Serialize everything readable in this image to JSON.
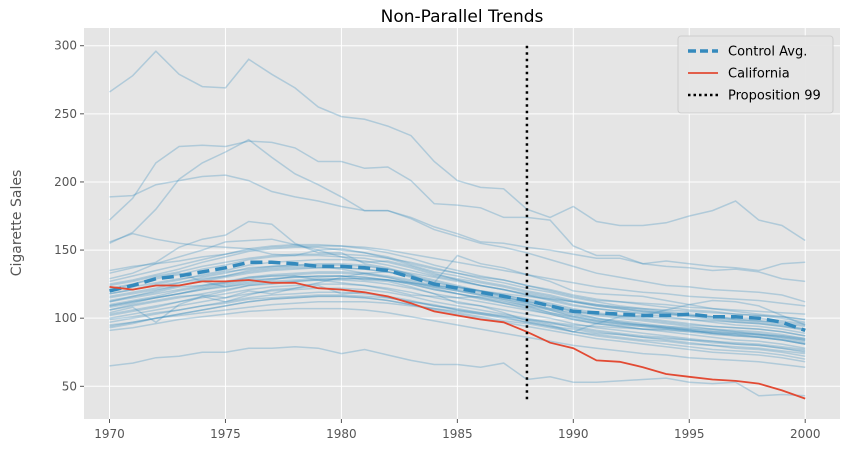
{
  "chart_data": {
    "type": "line",
    "title": "Non-Parallel Trends",
    "xlabel": "",
    "ylabel": "Cigarette Sales",
    "xlim": [
      1968.9,
      2001.5
    ],
    "ylim": [
      26,
      313
    ],
    "x_ticks": [
      1970,
      1975,
      1980,
      1985,
      1990,
      1995,
      2000
    ],
    "y_ticks": [
      50,
      100,
      150,
      200,
      250,
      300
    ],
    "grid": true,
    "legend_position": "top-right",
    "x": [
      1970,
      1971,
      1972,
      1973,
      1974,
      1975,
      1976,
      1977,
      1978,
      1979,
      1980,
      1981,
      1982,
      1983,
      1984,
      1985,
      1986,
      1987,
      1988,
      1989,
      1990,
      1991,
      1992,
      1993,
      1994,
      1995,
      1996,
      1997,
      1998,
      1999,
      2000
    ],
    "series": [
      {
        "name": "Control Avg.",
        "style": "dashed",
        "color": "#348ABD",
        "values": [
          120,
          124,
          129,
          131,
          134,
          137,
          141,
          141,
          140,
          138,
          138,
          137,
          135,
          130,
          125,
          122,
          119,
          116,
          113,
          109,
          105,
          104,
          103,
          102,
          102,
          103,
          101,
          101,
          100,
          97,
          91
        ]
      },
      {
        "name": "California",
        "style": "solid",
        "color": "#E24A33",
        "values": [
          123,
          121,
          124,
          124,
          127,
          127,
          128,
          126,
          126,
          122,
          121,
          119,
          116,
          111,
          105,
          102,
          99,
          97,
          90,
          82,
          78,
          69,
          68,
          64,
          59,
          57,
          55,
          54,
          52,
          47,
          41
        ]
      }
    ],
    "vline": {
      "name": "Proposition 99",
      "x": 1988,
      "y_range": [
        40,
        300
      ],
      "style": "dotted",
      "color": "#000000"
    },
    "control_states_color": "#348ABD",
    "control_states": [
      [
        266,
        278,
        296,
        279,
        270,
        269,
        290,
        279,
        269,
        255,
        248,
        246,
        241,
        234,
        215,
        201,
        196,
        195,
        180,
        174,
        182,
        171,
        168,
        168,
        170,
        175,
        179,
        186,
        172,
        168,
        157
      ],
      [
        189,
        190,
        198,
        201,
        204,
        205,
        201,
        193,
        189,
        186,
        182,
        179,
        179,
        174,
        167,
        162,
        156,
        155,
        152,
        150,
        147,
        144,
        144,
        140,
        138,
        137,
        135,
        136,
        134,
        129,
        127
      ],
      [
        172,
        188,
        214,
        226,
        227,
        226,
        230,
        229,
        225,
        215,
        215,
        210,
        211,
        201,
        184,
        183,
        181,
        174,
        174,
        172,
        153,
        146,
        146,
        140,
        142,
        140,
        138,
        137,
        135,
        140,
        141
      ],
      [
        155,
        163,
        180,
        202,
        214,
        222,
        231,
        218,
        206,
        198,
        189,
        179,
        179,
        173,
        165,
        160,
        155,
        152,
        148,
        143,
        138,
        133,
        130,
        127,
        124,
        123,
        121,
        120,
        119,
        117,
        112
      ],
      [
        156,
        162,
        158,
        155,
        153,
        152,
        151,
        147,
        146,
        150,
        145,
        141,
        142,
        138,
        133,
        128,
        124,
        121,
        117,
        113,
        109,
        107,
        105,
        104,
        103,
        102,
        101,
        100,
        100,
        98,
        96
      ],
      [
        133,
        137,
        141,
        152,
        158,
        161,
        171,
        169,
        155,
        148,
        148,
        140,
        137,
        132,
        124,
        123,
        120,
        116,
        111,
        106,
        101,
        98,
        96,
        95,
        94,
        92,
        90,
        89,
        88,
        86,
        83
      ],
      [
        129,
        133,
        140,
        145,
        150,
        156,
        157,
        158,
        154,
        150,
        151,
        148,
        145,
        140,
        136,
        133,
        130,
        128,
        124,
        120,
        116,
        113,
        112,
        111,
        110,
        108,
        107,
        106,
        105,
        104,
        103
      ],
      [
        125,
        128,
        132,
        136,
        141,
        145,
        149,
        151,
        152,
        152,
        150,
        148,
        144,
        139,
        134,
        131,
        127,
        124,
        120,
        117,
        113,
        110,
        108,
        106,
        104,
        102,
        100,
        98,
        97,
        95,
        92
      ],
      [
        122,
        125,
        129,
        132,
        136,
        139,
        143,
        145,
        146,
        146,
        145,
        144,
        141,
        137,
        132,
        129,
        126,
        123,
        119,
        116,
        112,
        109,
        107,
        105,
        103,
        101,
        99,
        97,
        96,
        94,
        91
      ],
      [
        118,
        121,
        125,
        128,
        132,
        135,
        139,
        141,
        142,
        143,
        143,
        142,
        139,
        135,
        131,
        128,
        124,
        121,
        117,
        114,
        110,
        107,
        105,
        103,
        101,
        99,
        97,
        95,
        94,
        92,
        89
      ],
      [
        115,
        118,
        121,
        124,
        127,
        130,
        133,
        135,
        136,
        137,
        137,
        136,
        134,
        130,
        126,
        123,
        120,
        117,
        114,
        111,
        107,
        104,
        102,
        100,
        98,
        96,
        94,
        93,
        92,
        90,
        87
      ],
      [
        112,
        115,
        118,
        121,
        124,
        127,
        130,
        132,
        133,
        134,
        134,
        133,
        131,
        128,
        124,
        121,
        118,
        115,
        112,
        109,
        105,
        102,
        100,
        98,
        96,
        94,
        92,
        90,
        89,
        87,
        84
      ],
      [
        109,
        112,
        115,
        118,
        121,
        124,
        127,
        129,
        130,
        131,
        131,
        130,
        128,
        125,
        121,
        118,
        115,
        112,
        109,
        106,
        102,
        99,
        97,
        95,
        93,
        91,
        89,
        87,
        86,
        84,
        81
      ],
      [
        106,
        109,
        112,
        115,
        118,
        121,
        124,
        126,
        127,
        128,
        128,
        127,
        125,
        122,
        118,
        115,
        112,
        109,
        106,
        103,
        99,
        96,
        94,
        92,
        90,
        88,
        86,
        84,
        83,
        81,
        78
      ],
      [
        103,
        106,
        109,
        112,
        115,
        118,
        121,
        123,
        124,
        125,
        125,
        124,
        122,
        119,
        115,
        112,
        109,
        106,
        103,
        100,
        96,
        93,
        91,
        89,
        87,
        85,
        83,
        81,
        80,
        78,
        75
      ],
      [
        100,
        103,
        106,
        109,
        112,
        115,
        118,
        120,
        121,
        122,
        122,
        121,
        119,
        116,
        112,
        109,
        106,
        103,
        100,
        97,
        93,
        90,
        88,
        86,
        84,
        82,
        80,
        78,
        77,
        75,
        72
      ],
      [
        97,
        100,
        103,
        106,
        109,
        112,
        115,
        117,
        118,
        119,
        119,
        118,
        116,
        113,
        109,
        106,
        103,
        100,
        97,
        94,
        90,
        87,
        85,
        83,
        81,
        79,
        77,
        76,
        75,
        73,
        70
      ],
      [
        94,
        97,
        100,
        103,
        106,
        109,
        112,
        114,
        115,
        116,
        116,
        115,
        113,
        110,
        106,
        103,
        100,
        97,
        94,
        91,
        88,
        85,
        83,
        81,
        79,
        77,
        75,
        74,
        73,
        71,
        68
      ],
      [
        91,
        93,
        96,
        99,
        101,
        103,
        105,
        106,
        107,
        107,
        107,
        106,
        104,
        101,
        98,
        95,
        92,
        89,
        86,
        83,
        80,
        78,
        76,
        74,
        73,
        71,
        70,
        69,
        68,
        66,
        64
      ],
      [
        65,
        67,
        71,
        72,
        75,
        75,
        78,
        78,
        79,
        78,
        74,
        77,
        73,
        69,
        66,
        66,
        64,
        67,
        55,
        57,
        53,
        53,
        54,
        55,
        56,
        53,
        52,
        53,
        43,
        44,
        43
      ],
      [
        120,
        125,
        130,
        133,
        127,
        123,
        126,
        128,
        131,
        130,
        131,
        128,
        127,
        123,
        118,
        111,
        109,
        104,
        98,
        95,
        90,
        96,
        101,
        102,
        106,
        110,
        113,
        112,
        109,
        102,
        95
      ],
      [
        106,
        110,
        113,
        116,
        117,
        115,
        120,
        118,
        122,
        126,
        130,
        133,
        134,
        131,
        126,
        146,
        140,
        137,
        132,
        127,
        120,
        118,
        117,
        116,
        113,
        110,
        107,
        105,
        103,
        101,
        99
      ],
      [
        113,
        116,
        119,
        123,
        124,
        126,
        130,
        131,
        131,
        128,
        126,
        124,
        121,
        117,
        116,
        115,
        116,
        113,
        109,
        104,
        100,
        97,
        95,
        94,
        93,
        92,
        91,
        90,
        88,
        86,
        84
      ],
      [
        118,
        121,
        124,
        126,
        129,
        131,
        135,
        137,
        138,
        138,
        136,
        133,
        130,
        126,
        122,
        118,
        115,
        111,
        107,
        103,
        99,
        96,
        94,
        92,
        92,
        91,
        89,
        88,
        87,
        85,
        82
      ],
      [
        102,
        105,
        108,
        112,
        116,
        120,
        124,
        125,
        127,
        128,
        129,
        129,
        128,
        126,
        123,
        120,
        117,
        114,
        111,
        107,
        104,
        100,
        98,
        96,
        94,
        93,
        92,
        91,
        90,
        88,
        85
      ],
      [
        110,
        113,
        116,
        120,
        123,
        126,
        129,
        131,
        132,
        133,
        133,
        132,
        130,
        127,
        123,
        120,
        117,
        114,
        110,
        107,
        103,
        100,
        97,
        95,
        93,
        91,
        89,
        88,
        86,
        84,
        81
      ],
      [
        99,
        101,
        104,
        106,
        109,
        111,
        114,
        115,
        116,
        117,
        117,
        116,
        115,
        112,
        109,
        107,
        104,
        102,
        99,
        96,
        94,
        91,
        89,
        87,
        86,
        84,
        82,
        81,
        80,
        78,
        76
      ],
      [
        127,
        131,
        135,
        139,
        143,
        147,
        151,
        153,
        154,
        154,
        153,
        151,
        148,
        144,
        139,
        135,
        131,
        128,
        124,
        121,
        117,
        114,
        112,
        110,
        108,
        106,
        105,
        103,
        102,
        100,
        97
      ],
      [
        104,
        108,
        97,
        110,
        116,
        112,
        117,
        121,
        122,
        124,
        118,
        119,
        115,
        112,
        110,
        106,
        104,
        101,
        97,
        94,
        92,
        89,
        88,
        86,
        85,
        84,
        83,
        82,
        81,
        79,
        77
      ],
      [
        108,
        111,
        115,
        118,
        122,
        125,
        128,
        129,
        130,
        131,
        131,
        130,
        128,
        125,
        121,
        118,
        114,
        111,
        108,
        104,
        101,
        98,
        96,
        94,
        92,
        90,
        88,
        87,
        86,
        84,
        81
      ],
      [
        116,
        119,
        122,
        126,
        130,
        133,
        137,
        138,
        139,
        140,
        140,
        139,
        136,
        132,
        128,
        124,
        120,
        117,
        113,
        110,
        106,
        103,
        101,
        99,
        97,
        95,
        94,
        93,
        92,
        90,
        87
      ],
      [
        112,
        116,
        120,
        124,
        128,
        131,
        134,
        136,
        137,
        137,
        137,
        136,
        134,
        131,
        127,
        123,
        119,
        116,
        112,
        109,
        105,
        103,
        102,
        101,
        100,
        99,
        98,
        97,
        96,
        94,
        92
      ],
      [
        93,
        96,
        100,
        103,
        106,
        109,
        112,
        114,
        115,
        116,
        116,
        115,
        113,
        110,
        107,
        104,
        101,
        98,
        96,
        93,
        90,
        88,
        86,
        84,
        83,
        81,
        80,
        79,
        78,
        76,
        74
      ],
      [
        121,
        123,
        126,
        129,
        131,
        134,
        136,
        138,
        139,
        139,
        139,
        138,
        136,
        133,
        130,
        127,
        124,
        121,
        118,
        115,
        112,
        109,
        107,
        105,
        104,
        102,
        101,
        99,
        98,
        97,
        95
      ],
      [
        135,
        138,
        140,
        142,
        145,
        147,
        150,
        152,
        153,
        153,
        153,
        152,
        150,
        147,
        144,
        141,
        138,
        135,
        132,
        129,
        126,
        123,
        121,
        119,
        118,
        116,
        115,
        114,
        113,
        111,
        109
      ],
      [
        95,
        97,
        100,
        102,
        104,
        106,
        108,
        110,
        111,
        112,
        112,
        112,
        111,
        109,
        107,
        105,
        103,
        101,
        99,
        97,
        95,
        94,
        93,
        92,
        91,
        90,
        90,
        89,
        88,
        87,
        85
      ],
      [
        109,
        112,
        115,
        118,
        121,
        123,
        125,
        127,
        128,
        129,
        129,
        129,
        128,
        126,
        124,
        122,
        120,
        118,
        116,
        114,
        112,
        110,
        108,
        107,
        106,
        105,
        104,
        103,
        102,
        101,
        99
      ],
      [
        124,
        127,
        131,
        134,
        138,
        141,
        144,
        146,
        147,
        147,
        147,
        146,
        144,
        141,
        137,
        133,
        129,
        126,
        122,
        119,
        115,
        112,
        109,
        107,
        105,
        103,
        101,
        99,
        98,
        96,
        94
      ]
    ]
  }
}
